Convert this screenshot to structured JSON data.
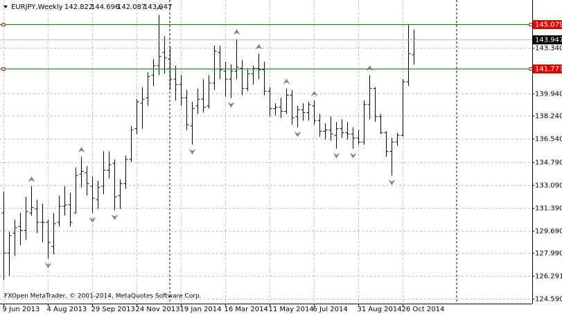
{
  "chart_data": {
    "type": "ohlc",
    "title": "EURJPY,Weekly",
    "copyright": "FXOpen MetaTrader, © 2001-2014, MetaQuotes Software Corp.",
    "color": "#000000",
    "grid": true,
    "categories": [
      "9 Jun 2013",
      null,
      null,
      null,
      null,
      null,
      null,
      null,
      "4 Aug 2013",
      null,
      null,
      null,
      null,
      null,
      null,
      null,
      "29 Sep 2013",
      null,
      null,
      null,
      null,
      null,
      null,
      null,
      "24 Nov 2013",
      null,
      null,
      null,
      null,
      null,
      null,
      null,
      "19 Jan 2014",
      null,
      null,
      null,
      null,
      null,
      null,
      null,
      "16 Mar 2014",
      null,
      null,
      null,
      null,
      null,
      null,
      null,
      "11 May 2014",
      null,
      null,
      null,
      null,
      null,
      null,
      null,
      "6 Jul 2014",
      null,
      null,
      null,
      null,
      null,
      null,
      null,
      "31 Aug 2014",
      null,
      null,
      null,
      null,
      null,
      null,
      null,
      "26 Oct 2014",
      null,
      null
    ],
    "open": [
      131.0,
      128.0,
      129.5,
      130.0,
      129.7,
      131.0,
      131.3,
      130.3,
      130.3,
      128.5,
      130.3,
      131.5,
      131.6,
      131.0,
      133.9,
      134.0,
      133.0,
      132.0,
      133.0,
      134.2,
      134.7,
      132.3,
      133.2,
      135.0,
      137.3,
      139.2,
      139.6,
      141.3,
      142.0,
      143.0,
      142.5,
      141.0,
      140.6,
      139.6,
      137.5,
      139.0,
      139.5,
      139.0,
      140.7,
      143.0,
      141.6,
      141.0,
      141.6,
      141.8,
      140.3,
      141.4,
      141.8,
      141.7,
      140.1,
      138.8,
      138.9,
      138.6,
      139.8,
      138.2,
      138.7,
      138.5,
      139.0,
      137.9,
      137.1,
      137.2,
      136.8,
      137.3,
      137.0,
      136.9,
      136.6,
      136.3,
      139.1,
      140.3,
      138.2,
      137.0,
      135.6,
      136.3,
      136.8,
      140.8,
      142.822
    ],
    "high": [
      132.6,
      129.6,
      130.5,
      131.0,
      132.2,
      133.0,
      132.0,
      131.7,
      130.5,
      131.0,
      132.3,
      133.0,
      132.5,
      134.4,
      135.2,
      134.5,
      133.7,
      133.4,
      135.6,
      135.6,
      135.0,
      133.5,
      135.3,
      137.5,
      139.5,
      140.4,
      141.5,
      142.5,
      145.8,
      144.2,
      143.4,
      142.0,
      141.3,
      140.2,
      139.3,
      140.3,
      141.0,
      141.3,
      143.5,
      143.5,
      142.3,
      142.1,
      144.0,
      142.4,
      141.8,
      142.0,
      142.9,
      142.3,
      140.4,
      139.2,
      139.6,
      140.3,
      140.2,
      139.0,
      139.2,
      139.3,
      139.4,
      138.4,
      137.7,
      138.2,
      137.8,
      138.0,
      137.8,
      137.4,
      137.2,
      139.4,
      141.3,
      140.4,
      138.4,
      137.1,
      136.6,
      137.0,
      141.0,
      145.1,
      144.696
    ],
    "low": [
      126.0,
      126.3,
      127.8,
      128.6,
      129.0,
      130.8,
      129.5,
      128.8,
      127.6,
      127.9,
      130.0,
      130.8,
      130.0,
      131.0,
      132.9,
      132.3,
      131.0,
      131.3,
      132.4,
      133.6,
      131.2,
      131.3,
      132.8,
      134.8,
      136.9,
      137.3,
      139.0,
      140.5,
      141.3,
      141.4,
      140.2,
      139.4,
      139.0,
      137.2,
      136.1,
      138.4,
      138.5,
      138.8,
      140.2,
      141.0,
      139.7,
      139.6,
      141.0,
      139.8,
      140.1,
      140.6,
      141.0,
      139.8,
      138.2,
      138.3,
      138.1,
      138.4,
      137.6,
      137.4,
      137.9,
      137.9,
      137.6,
      136.7,
      136.5,
      136.4,
      135.8,
      136.6,
      136.5,
      135.8,
      136.1,
      136.1,
      138.0,
      137.8,
      136.9,
      135.2,
      133.8,
      136.0,
      136.7,
      140.5,
      142.087
    ],
    "close": [
      128.0,
      129.3,
      129.9,
      129.7,
      131.1,
      131.4,
      130.3,
      130.3,
      128.8,
      130.2,
      131.5,
      131.6,
      130.3,
      133.8,
      134.1,
      133.2,
      132.1,
      132.9,
      134.2,
      134.6,
      132.2,
      133.2,
      135.0,
      137.2,
      139.3,
      139.5,
      141.2,
      142.0,
      142.7,
      142.6,
      141.0,
      140.6,
      139.6,
      137.6,
      138.8,
      139.5,
      138.9,
      140.7,
      143.1,
      141.7,
      141.0,
      141.6,
      141.9,
      140.3,
      141.4,
      141.8,
      141.7,
      140.1,
      138.8,
      138.9,
      138.6,
      139.8,
      138.1,
      138.7,
      138.5,
      139.1,
      137.9,
      137.1,
      137.2,
      136.9,
      137.3,
      137.0,
      136.9,
      136.6,
      136.3,
      139.1,
      140.3,
      138.2,
      137.0,
      135.6,
      136.3,
      136.8,
      140.8,
      142.9,
      143.947
    ],
    "ylim": [
      124.23,
      146.91
    ],
    "yticks": [
      {
        "value": 124.59,
        "label": "124.590"
      },
      126.291,
      {
        "value": 127.99,
        "label": "127.990"
      },
      {
        "value": 129.69,
        "label": "129.690"
      },
      {
        "value": 131.39,
        "label": "131.390"
      },
      {
        "value": 133.09,
        "label": "133.090"
      },
      {
        "value": 134.79,
        "label": "134.790"
      },
      {
        "value": 136.54,
        "label": "136.540"
      },
      {
        "value": 138.24,
        "label": "138.240"
      },
      {
        "value": 139.94,
        "label": "139.940"
      },
      {
        "value": 143.34,
        "label": "143.340"
      }
    ],
    "levels": [
      {
        "value": 145.079,
        "color": "#e00000"
      },
      {
        "value": 141.777,
        "color": "#e00000"
      }
    ]
  }
}
